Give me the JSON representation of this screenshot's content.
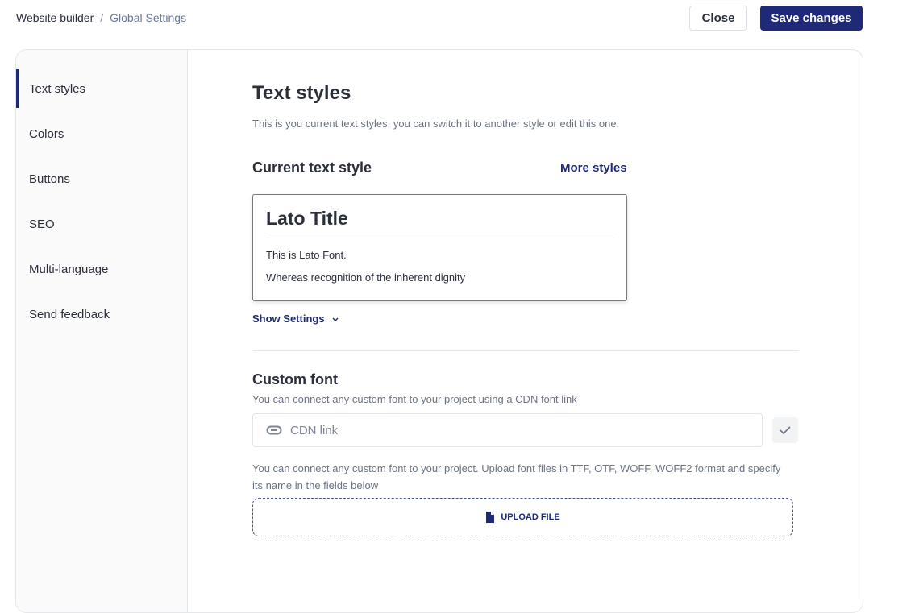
{
  "breadcrumb": {
    "root": "Website builder",
    "separator": "/",
    "current": "Global Settings"
  },
  "header": {
    "close_label": "Close",
    "save_label": "Save changes"
  },
  "sidebar": {
    "items": [
      {
        "label": "Text styles",
        "active": true
      },
      {
        "label": "Colors"
      },
      {
        "label": "Buttons"
      },
      {
        "label": "SEO"
      },
      {
        "label": "Multi-language"
      },
      {
        "label": "Send feedback"
      }
    ]
  },
  "main": {
    "title": "Text styles",
    "subtitle": "This is you current text styles, you can switch it to another style or edit this one.",
    "current_style_label": "Current text style",
    "more_styles": "More styles",
    "preview": {
      "title": "Lato Title",
      "line1": "This is Lato Font.",
      "line2": "Whereas recognition of the inherent dignity"
    },
    "show_settings": "Show Settings",
    "custom_font": {
      "title": "Custom font",
      "desc": "You can connect any custom font to your project using a CDN font link",
      "cdn_placeholder": "CDN link",
      "upload_desc": "You can connect any custom font to your project. Upload font files in TTF, OTF, WOFF, WOFF2 format and specify its name in the fields below",
      "upload_label": "UPLOAD FILE"
    }
  },
  "colors": {
    "accent": "#1e2a78"
  }
}
